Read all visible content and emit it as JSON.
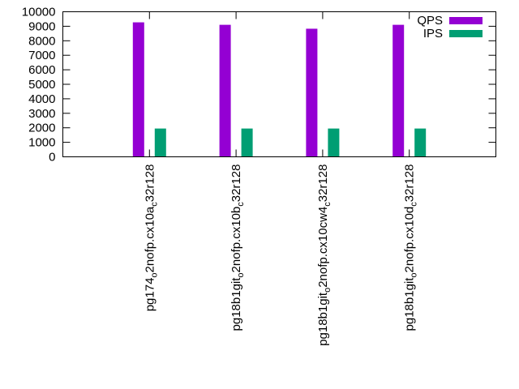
{
  "chart_data": {
    "type": "bar",
    "title": "",
    "xlabel": "",
    "ylabel": "",
    "ylim": [
      0,
      10000
    ],
    "yticks": [
      0,
      1000,
      2000,
      3000,
      4000,
      5000,
      6000,
      7000,
      8000,
      9000,
      10000
    ],
    "grid": false,
    "legend_position": "top-right",
    "categories": [
      {
        "base": "pg174",
        "sub1": "o",
        "mid": "2nofp.cx10a",
        "sub2": "c",
        "tail": "32r128"
      },
      {
        "base": "pg18b1git",
        "sub1": "o",
        "mid": "2nofp.cx10b",
        "sub2": "c",
        "tail": "32r128"
      },
      {
        "base": "pg18b1git",
        "sub1": "o",
        "mid": "2nofp.cx10cw4",
        "sub2": "c",
        "tail": "32r128"
      },
      {
        "base": "pg18b1git",
        "sub1": "o",
        "mid": "2nofp.cx10d",
        "sub2": "c",
        "tail": "32r128"
      }
    ],
    "series": [
      {
        "name": "QPS",
        "color": "#9400d3",
        "values": [
          9270,
          9100,
          8830,
          9100
        ]
      },
      {
        "name": "IPS",
        "color": "#009e73",
        "values": [
          1950,
          1950,
          1950,
          1950
        ]
      }
    ]
  }
}
